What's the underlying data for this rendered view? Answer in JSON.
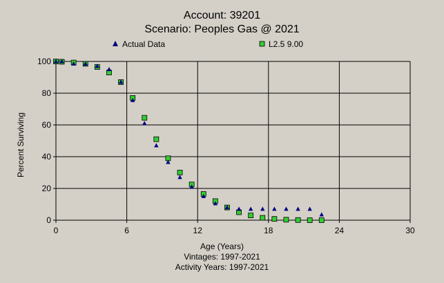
{
  "chart_data": {
    "type": "scatter",
    "title": "Account: 39201",
    "subtitle": "Scenario: Peoples Gas @ 2021",
    "xlabel": "Age (Years)",
    "ylabel": "Percent Surviving",
    "xlim": [
      0,
      30
    ],
    "ylim": [
      0,
      100
    ],
    "xticks": [
      0,
      6,
      12,
      18,
      24,
      30
    ],
    "yticks": [
      0,
      20,
      40,
      60,
      80,
      100
    ],
    "grid": true,
    "legend_position": "top",
    "footer_lines": [
      "Vintages: 1997-2021",
      "Activity Years: 1997-2021"
    ],
    "series": [
      {
        "name": "Actual Data",
        "marker": "triangle",
        "color": "#000080",
        "points": [
          [
            0,
            100
          ],
          [
            0.5,
            100
          ],
          [
            1.5,
            98.5
          ],
          [
            2.5,
            98.5
          ],
          [
            3.5,
            97
          ],
          [
            4.5,
            95
          ],
          [
            5.5,
            87
          ],
          [
            6.5,
            75.5
          ],
          [
            7.5,
            61
          ],
          [
            8.5,
            47
          ],
          [
            9.5,
            36.5
          ],
          [
            10.5,
            27
          ],
          [
            11.5,
            21
          ],
          [
            12.5,
            15
          ],
          [
            13.5,
            10.5
          ],
          [
            14.5,
            8
          ],
          [
            15.5,
            7
          ],
          [
            16.5,
            7
          ],
          [
            17.5,
            7
          ],
          [
            18.5,
            7
          ],
          [
            19.5,
            7
          ],
          [
            20.5,
            7
          ],
          [
            21.5,
            7
          ],
          [
            22.5,
            3.5
          ]
        ]
      },
      {
        "name": "L2.5 9.00",
        "marker": "square",
        "color": "#33cc33",
        "points": [
          [
            0,
            100
          ],
          [
            0.5,
            99.8
          ],
          [
            1.5,
            99.3
          ],
          [
            2.5,
            98.5
          ],
          [
            3.5,
            96.5
          ],
          [
            4.5,
            93
          ],
          [
            5.5,
            87
          ],
          [
            6.5,
            77
          ],
          [
            7.5,
            64.5
          ],
          [
            8.5,
            51
          ],
          [
            9.5,
            39
          ],
          [
            10.5,
            30
          ],
          [
            11.5,
            22.5
          ],
          [
            12.5,
            16.5
          ],
          [
            13.5,
            12
          ],
          [
            14.5,
            8
          ],
          [
            15.5,
            5
          ],
          [
            16.5,
            3
          ],
          [
            17.5,
            1.5
          ],
          [
            18.5,
            0.8
          ],
          [
            19.5,
            0.3
          ],
          [
            20.5,
            0.1
          ],
          [
            21.5,
            0
          ],
          [
            22.5,
            0
          ]
        ]
      }
    ]
  }
}
